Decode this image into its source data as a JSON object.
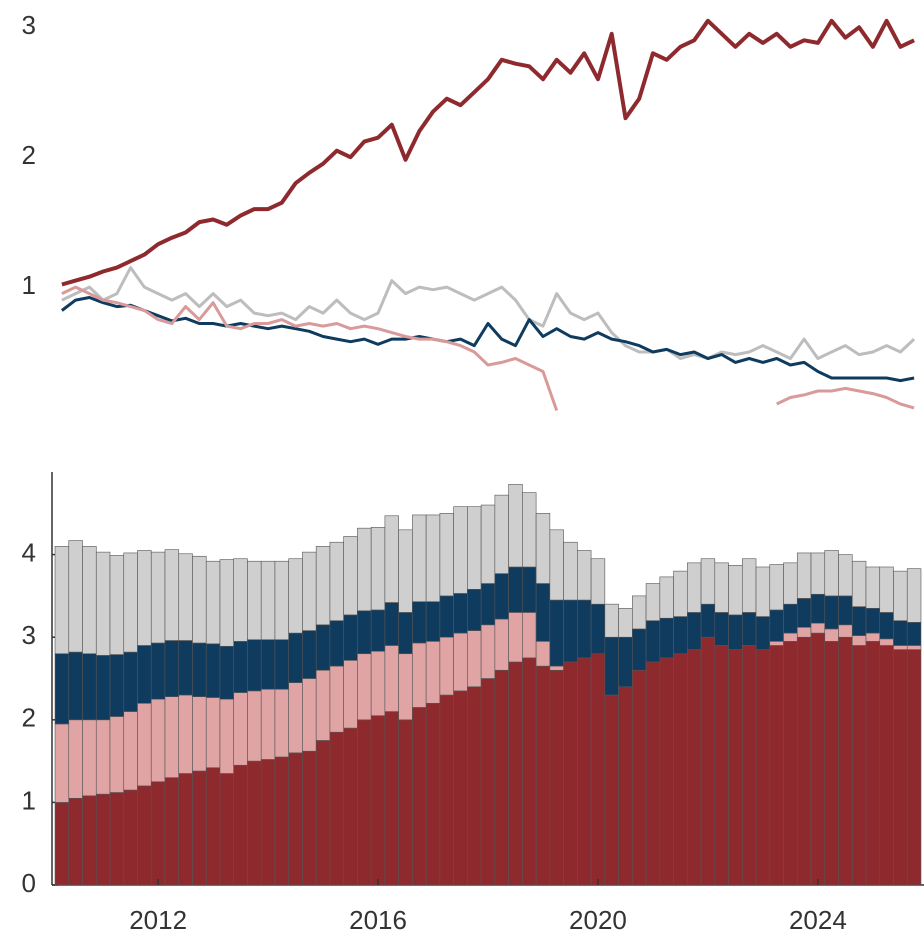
{
  "chart_data": [
    {
      "type": "line",
      "x": [
        2010.25,
        2010.5,
        2010.75,
        2011,
        2011.25,
        2011.5,
        2011.75,
        2012,
        2012.25,
        2012.5,
        2012.75,
        2013,
        2013.25,
        2013.5,
        2013.75,
        2014,
        2014.25,
        2014.5,
        2014.75,
        2015,
        2015.25,
        2015.5,
        2015.75,
        2016,
        2016.25,
        2016.5,
        2016.75,
        2017,
        2017.25,
        2017.5,
        2017.75,
        2018,
        2018.25,
        2018.5,
        2018.75,
        2019,
        2019.25,
        2019.5,
        2019.75,
        2020,
        2020.25,
        2020.5,
        2020.75,
        2021,
        2021.25,
        2021.5,
        2021.75,
        2022,
        2022.25,
        2022.5,
        2022.75,
        2023,
        2023.25,
        2023.5,
        2023.75,
        2024,
        2024.25,
        2024.5,
        2024.75,
        2025,
        2025.25,
        2025.5,
        2025.75
      ],
      "xlim": [
        2010.07,
        2025.93
      ],
      "ylim": [
        0,
        3.21
      ],
      "yticks": [
        1,
        2,
        3
      ],
      "series": [
        {
          "color": "#bdbdbd",
          "values": [
            0.9,
            0.95,
            1.0,
            0.9,
            0.95,
            1.15,
            1.0,
            0.95,
            0.9,
            0.95,
            0.85,
            0.95,
            0.85,
            0.9,
            0.8,
            0.78,
            0.8,
            0.75,
            0.85,
            0.8,
            0.9,
            0.8,
            0.75,
            0.8,
            1.05,
            0.95,
            1.0,
            0.98,
            1.0,
            0.95,
            0.9,
            0.95,
            1.0,
            0.9,
            0.75,
            0.7,
            0.95,
            0.8,
            0.75,
            0.8,
            0.65,
            0.55,
            0.5,
            0.5,
            0.52,
            0.45,
            0.48,
            0.45,
            0.5,
            0.48,
            0.5,
            0.55,
            0.5,
            0.45,
            0.6,
            0.45,
            0.5,
            0.55,
            0.48,
            0.5,
            0.55,
            0.5,
            0.6
          ]
        },
        {
          "color": "#0f3b5f",
          "values": [
            0.82,
            0.9,
            0.92,
            0.88,
            0.85,
            0.86,
            0.82,
            0.78,
            0.74,
            0.76,
            0.72,
            0.72,
            0.7,
            0.72,
            0.7,
            0.68,
            0.7,
            0.68,
            0.66,
            0.62,
            0.6,
            0.58,
            0.6,
            0.56,
            0.6,
            0.6,
            0.62,
            0.6,
            0.58,
            0.6,
            0.55,
            0.72,
            0.6,
            0.55,
            0.75,
            0.62,
            0.68,
            0.62,
            0.6,
            0.65,
            0.6,
            0.58,
            0.55,
            0.5,
            0.52,
            0.48,
            0.5,
            0.45,
            0.48,
            0.42,
            0.45,
            0.42,
            0.45,
            0.4,
            0.42,
            0.35,
            0.3,
            0.3,
            0.3,
            0.3,
            0.3,
            0.28,
            0.3
          ]
        },
        {
          "color": "#d99a9a",
          "values": [
            0.95,
            1.0,
            0.95,
            0.9,
            0.88,
            0.85,
            0.82,
            0.75,
            0.72,
            0.85,
            0.75,
            0.88,
            0.7,
            0.68,
            0.72,
            0.72,
            0.75,
            0.7,
            0.72,
            0.7,
            0.72,
            0.68,
            0.7,
            0.68,
            0.65,
            0.62,
            0.6,
            0.6,
            0.58,
            0.55,
            0.5,
            0.4,
            0.42,
            0.45,
            0.4,
            0.35,
            0.05,
            null,
            null,
            null,
            null,
            null,
            null,
            null,
            null,
            null,
            null,
            null,
            null,
            null,
            null,
            null,
            0.1,
            0.15,
            0.17,
            0.2,
            0.2,
            0.22,
            0.2,
            0.18,
            0.15,
            0.1,
            0.07
          ]
        },
        {
          "color": "#8e2a2e",
          "values": [
            1.02,
            1.05,
            1.08,
            1.12,
            1.15,
            1.2,
            1.25,
            1.33,
            1.38,
            1.42,
            1.5,
            1.52,
            1.48,
            1.55,
            1.6,
            1.6,
            1.65,
            1.8,
            1.88,
            1.95,
            2.05,
            2.0,
            2.12,
            2.15,
            2.25,
            1.98,
            2.2,
            2.35,
            2.45,
            2.4,
            2.5,
            2.6,
            2.75,
            2.72,
            2.7,
            2.6,
            2.75,
            2.65,
            2.8,
            2.6,
            2.95,
            2.3,
            2.45,
            2.8,
            2.75,
            2.85,
            2.9,
            3.05,
            2.95,
            2.85,
            2.95,
            2.88,
            2.95,
            2.85,
            2.9,
            2.88,
            3.05,
            2.92,
            3.0,
            2.85,
            3.05,
            2.85,
            2.9
          ]
        }
      ]
    },
    {
      "type": "bar",
      "stacked": true,
      "x": [
        2010.25,
        2010.5,
        2010.75,
        2011,
        2011.25,
        2011.5,
        2011.75,
        2012,
        2012.25,
        2012.5,
        2012.75,
        2013,
        2013.25,
        2013.5,
        2013.75,
        2014,
        2014.25,
        2014.5,
        2014.75,
        2015,
        2015.25,
        2015.5,
        2015.75,
        2016,
        2016.25,
        2016.5,
        2016.75,
        2017,
        2017.25,
        2017.5,
        2017.75,
        2018,
        2018.25,
        2018.5,
        2018.75,
        2019,
        2019.25,
        2019.5,
        2019.75,
        2020,
        2020.25,
        2020.5,
        2020.75,
        2021,
        2021.25,
        2021.5,
        2021.75,
        2022,
        2022.25,
        2022.5,
        2022.75,
        2023,
        2023.25,
        2023.5,
        2023.75,
        2024,
        2024.25,
        2024.5,
        2024.75,
        2025,
        2025.25,
        2025.5,
        2025.75
      ],
      "xlim": [
        2010.07,
        2025.93
      ],
      "xticks": [
        2012,
        2016,
        2020,
        2024
      ],
      "ylim": [
        0,
        5
      ],
      "yticks": [
        0,
        1,
        2,
        3,
        4
      ],
      "series": [
        {
          "color": "#8e2a2e",
          "values": [
            1.0,
            1.05,
            1.08,
            1.1,
            1.12,
            1.15,
            1.2,
            1.25,
            1.3,
            1.35,
            1.38,
            1.42,
            1.35,
            1.45,
            1.5,
            1.52,
            1.55,
            1.6,
            1.62,
            1.75,
            1.85,
            1.9,
            2.0,
            2.05,
            2.1,
            2.0,
            2.15,
            2.2,
            2.3,
            2.35,
            2.4,
            2.5,
            2.6,
            2.7,
            2.75,
            2.65,
            2.6,
            2.7,
            2.75,
            2.8,
            2.3,
            2.4,
            2.6,
            2.7,
            2.75,
            2.8,
            2.85,
            3.0,
            2.9,
            2.85,
            2.9,
            2.85,
            2.9,
            2.95,
            3.0,
            3.05,
            2.95,
            3.0,
            2.9,
            2.95,
            2.9,
            2.85,
            2.85
          ]
        },
        {
          "color": "#e0a4a4",
          "values": [
            0.95,
            0.95,
            0.92,
            0.9,
            0.92,
            0.95,
            1.0,
            1.0,
            0.98,
            0.95,
            0.9,
            0.85,
            0.9,
            0.88,
            0.85,
            0.85,
            0.82,
            0.85,
            0.88,
            0.85,
            0.8,
            0.82,
            0.8,
            0.78,
            0.8,
            0.8,
            0.78,
            0.75,
            0.7,
            0.7,
            0.68,
            0.65,
            0.62,
            0.6,
            0.55,
            0.3,
            0.05,
            0,
            0,
            0,
            0,
            0,
            0,
            0,
            0,
            0,
            0,
            0,
            0,
            0,
            0,
            0,
            0.05,
            0.1,
            0.12,
            0.12,
            0.15,
            0.15,
            0.12,
            0.1,
            0.08,
            0.05,
            0.05
          ]
        },
        {
          "color": "#0f3b5f",
          "values": [
            0.85,
            0.82,
            0.8,
            0.78,
            0.75,
            0.72,
            0.7,
            0.68,
            0.68,
            0.66,
            0.65,
            0.65,
            0.64,
            0.62,
            0.62,
            0.6,
            0.6,
            0.6,
            0.58,
            0.55,
            0.55,
            0.55,
            0.52,
            0.5,
            0.52,
            0.5,
            0.5,
            0.48,
            0.5,
            0.48,
            0.5,
            0.5,
            0.55,
            0.55,
            0.55,
            0.7,
            0.8,
            0.75,
            0.7,
            0.6,
            0.7,
            0.6,
            0.5,
            0.5,
            0.48,
            0.45,
            0.45,
            0.4,
            0.4,
            0.42,
            0.4,
            0.4,
            0.38,
            0.35,
            0.35,
            0.35,
            0.4,
            0.35,
            0.35,
            0.3,
            0.32,
            0.3,
            0.28
          ]
        },
        {
          "color": "#cfcfcf",
          "values": [
            1.3,
            1.35,
            1.3,
            1.25,
            1.2,
            1.2,
            1.15,
            1.1,
            1.1,
            1.05,
            1.05,
            1.0,
            1.05,
            1.0,
            0.95,
            0.95,
            0.95,
            0.9,
            0.95,
            0.95,
            0.95,
            0.95,
            1.0,
            1.0,
            1.05,
            1.0,
            1.05,
            1.05,
            1.0,
            1.05,
            1.0,
            0.95,
            0.95,
            1.0,
            0.9,
            0.85,
            0.85,
            0.7,
            0.6,
            0.55,
            0.4,
            0.35,
            0.4,
            0.45,
            0.5,
            0.55,
            0.6,
            0.55,
            0.6,
            0.6,
            0.65,
            0.6,
            0.55,
            0.5,
            0.55,
            0.5,
            0.55,
            0.5,
            0.55,
            0.5,
            0.55,
            0.6,
            0.65
          ]
        }
      ]
    }
  ]
}
